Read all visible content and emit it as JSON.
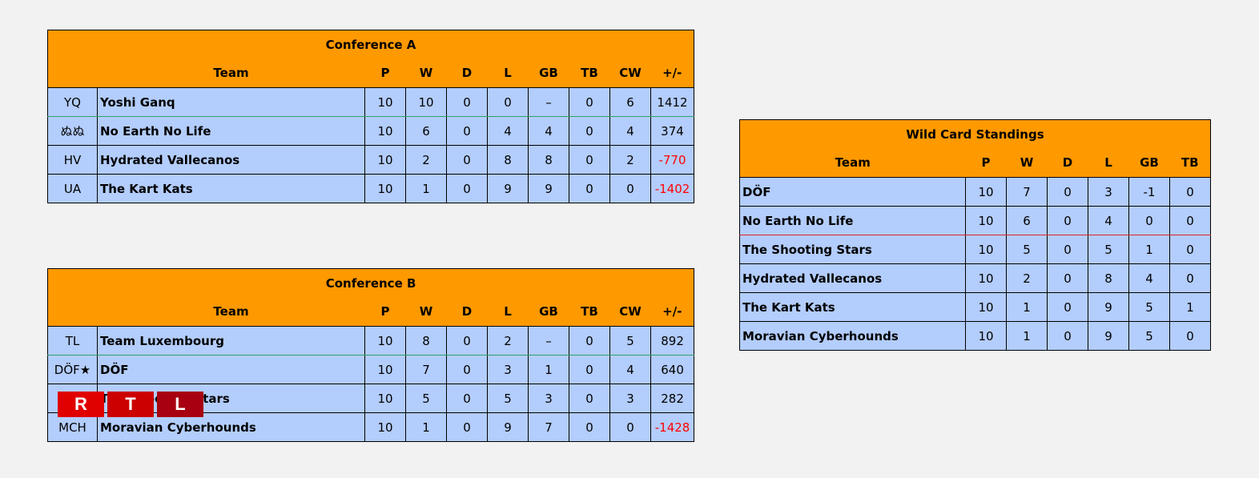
{
  "conference_a": {
    "title": "Conference A",
    "headers": [
      "",
      "Team",
      "P",
      "W",
      "D",
      "L",
      "GB",
      "TB",
      "CW",
      "+/-"
    ],
    "rows": [
      {
        "abbr": "YQ",
        "team": "Yoshi Ganq",
        "p": "10",
        "w": "10",
        "d": "0",
        "l": "0",
        "gb": "–",
        "tb": "0",
        "cw": "6",
        "diff": "1412"
      },
      {
        "abbr": "ぬぬ",
        "team": "No Earth No Life",
        "p": "10",
        "w": "6",
        "d": "0",
        "l": "4",
        "gb": "4",
        "tb": "0",
        "cw": "4",
        "diff": "374"
      },
      {
        "abbr": "HV",
        "team": "Hydrated Vallecanos",
        "p": "10",
        "w": "2",
        "d": "0",
        "l": "8",
        "gb": "8",
        "tb": "0",
        "cw": "2",
        "diff": "-770"
      },
      {
        "abbr": "UA",
        "team": "The Kart Kats",
        "p": "10",
        "w": "1",
        "d": "0",
        "l": "9",
        "gb": "9",
        "tb": "0",
        "cw": "0",
        "diff": "-1402"
      }
    ]
  },
  "conference_b": {
    "title": "Conference B",
    "headers": [
      "",
      "Team",
      "P",
      "W",
      "D",
      "L",
      "GB",
      "TB",
      "CW",
      "+/-"
    ],
    "rows": [
      {
        "abbr": "TL",
        "team": "Team Luxembourg",
        "p": "10",
        "w": "8",
        "d": "0",
        "l": "2",
        "gb": "–",
        "tb": "0",
        "cw": "5",
        "diff": "892"
      },
      {
        "abbr": "DÖF★",
        "team": "DÖF",
        "p": "10",
        "w": "7",
        "d": "0",
        "l": "3",
        "gb": "1",
        "tb": "0",
        "cw": "4",
        "diff": "640"
      },
      {
        "abbr": "",
        "team": "The Shooting Stars",
        "p": "10",
        "w": "5",
        "d": "0",
        "l": "5",
        "gb": "3",
        "tb": "0",
        "cw": "3",
        "diff": "282"
      },
      {
        "abbr": "MCH",
        "team": "Moravian Cyberhounds",
        "p": "10",
        "w": "1",
        "d": "0",
        "l": "9",
        "gb": "7",
        "tb": "0",
        "cw": "0",
        "diff": "-1428"
      }
    ]
  },
  "wild_card": {
    "title": "Wild Card Standings",
    "headers": [
      "Team",
      "P",
      "W",
      "D",
      "L",
      "GB",
      "TB"
    ],
    "rows": [
      {
        "team": "DÖF",
        "p": "10",
        "w": "7",
        "d": "0",
        "l": "3",
        "gb": "-1",
        "tb": "0"
      },
      {
        "team": "No Earth No Life",
        "p": "10",
        "w": "6",
        "d": "0",
        "l": "4",
        "gb": "0",
        "tb": "0"
      },
      {
        "team": "The Shooting Stars",
        "p": "10",
        "w": "5",
        "d": "0",
        "l": "5",
        "gb": "1",
        "tb": "0"
      },
      {
        "team": "Hydrated Vallecanos",
        "p": "10",
        "w": "2",
        "d": "0",
        "l": "8",
        "gb": "4",
        "tb": "0"
      },
      {
        "team": "The Kart Kats",
        "p": "10",
        "w": "1",
        "d": "0",
        "l": "9",
        "gb": "5",
        "tb": "1"
      },
      {
        "team": "Moravian Cyberhounds",
        "p": "10",
        "w": "1",
        "d": "0",
        "l": "9",
        "gb": "5",
        "tb": "0"
      }
    ]
  },
  "watermark": {
    "letters": [
      "R",
      "T",
      "L"
    ]
  },
  "colors": {
    "header": "#ff9900",
    "row": "#b3cdfc",
    "negative": "#ff0000",
    "qualify_line": "#2fa06b",
    "cut_line": "#e0222a"
  }
}
